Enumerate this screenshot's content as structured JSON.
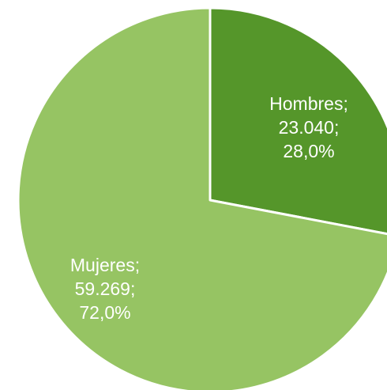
{
  "chart_data": {
    "type": "pie",
    "title": "",
    "slices": [
      {
        "name": "Hombres",
        "value": 23040,
        "percent": 28.0,
        "value_label": "23.040",
        "percent_label": "28,0%",
        "color": "#55962a"
      },
      {
        "name": "Mujeres",
        "value": 59269,
        "percent": 72.0,
        "value_label": "59.269",
        "percent_label": "72,0%",
        "color": "#96c463"
      }
    ],
    "labels": [
      [
        "Hombres;",
        "23.040;",
        "28,0%"
      ],
      [
        "Mujeres;",
        "59.269;",
        "72,0%"
      ]
    ],
    "legend": "none",
    "start_angle": "12 o'clock",
    "direction": "clockwise",
    "slice_border_color": "#ffffff"
  }
}
